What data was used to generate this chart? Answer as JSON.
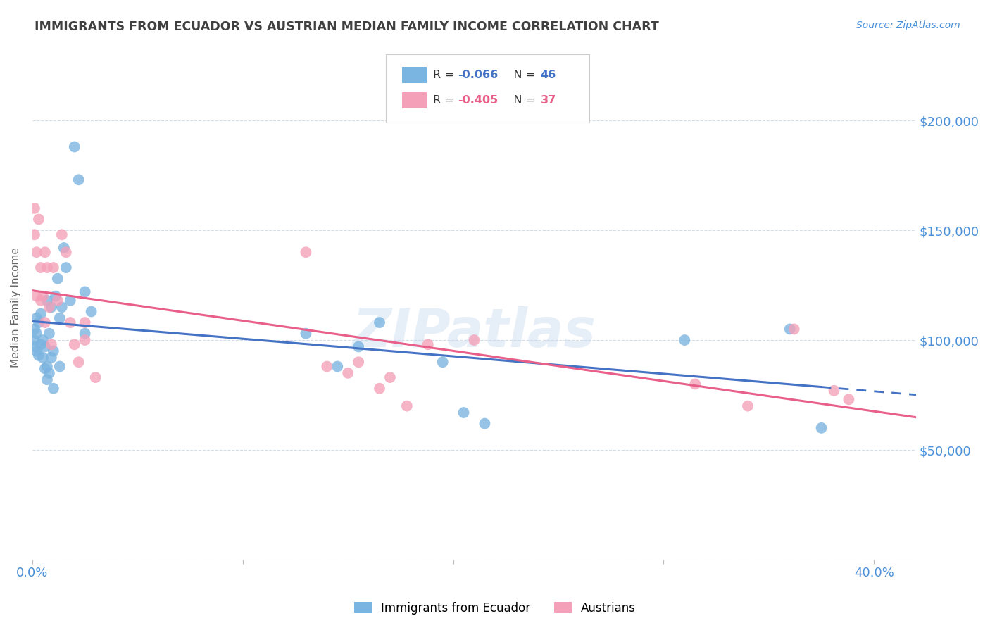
{
  "title": "IMMIGRANTS FROM ECUADOR VS AUSTRIAN MEDIAN FAMILY INCOME CORRELATION CHART",
  "source": "Source: ZipAtlas.com",
  "ylabel": "Median Family Income",
  "yticks": [
    0,
    50000,
    100000,
    150000,
    200000
  ],
  "ytick_labels": [
    "",
    "$50,000",
    "$100,000",
    "$150,000",
    "$200,000"
  ],
  "xlim": [
    0.0,
    0.42
  ],
  "ylim": [
    0,
    230000
  ],
  "legend_R1": "R = ",
  "legend_R1_val": "-0.066",
  "legend_N1": "   N = ",
  "legend_N1_val": "46",
  "legend_R2": "R = ",
  "legend_R2_val": "-0.405",
  "legend_N2": "   N = ",
  "legend_N2_val": "37",
  "series1_label": "Immigrants from Ecuador",
  "series2_label": "Austrians",
  "series1_color": "#7ab4e0",
  "series2_color": "#f4a0b8",
  "series1_line_color": "#4472c4",
  "series2_line_color": "#e8608a",
  "series1_x": [
    0.001,
    0.001,
    0.001,
    0.002,
    0.002,
    0.002,
    0.003,
    0.003,
    0.004,
    0.004,
    0.005,
    0.005,
    0.006,
    0.006,
    0.007,
    0.007,
    0.007,
    0.008,
    0.008,
    0.009,
    0.009,
    0.01,
    0.01,
    0.011,
    0.012,
    0.013,
    0.013,
    0.014,
    0.015,
    0.016,
    0.018,
    0.02,
    0.022,
    0.025,
    0.025,
    0.028,
    0.13,
    0.145,
    0.155,
    0.165,
    0.195,
    0.205,
    0.215,
    0.31,
    0.36,
    0.375
  ],
  "series1_y": [
    105000,
    100000,
    97000,
    110000,
    103000,
    95000,
    108000,
    93000,
    112000,
    98000,
    100000,
    92000,
    97000,
    87000,
    118000,
    88000,
    82000,
    103000,
    85000,
    115000,
    92000,
    95000,
    78000,
    120000,
    128000,
    110000,
    88000,
    115000,
    142000,
    133000,
    118000,
    188000,
    173000,
    103000,
    122000,
    113000,
    103000,
    88000,
    97000,
    108000,
    90000,
    67000,
    62000,
    100000,
    105000,
    60000
  ],
  "series2_x": [
    0.001,
    0.001,
    0.002,
    0.002,
    0.003,
    0.004,
    0.004,
    0.005,
    0.006,
    0.006,
    0.007,
    0.008,
    0.009,
    0.01,
    0.012,
    0.014,
    0.016,
    0.018,
    0.02,
    0.022,
    0.025,
    0.025,
    0.03,
    0.13,
    0.14,
    0.15,
    0.155,
    0.165,
    0.17,
    0.178,
    0.188,
    0.21,
    0.315,
    0.34,
    0.362,
    0.381,
    0.388
  ],
  "series2_y": [
    160000,
    148000,
    140000,
    120000,
    155000,
    133000,
    118000,
    120000,
    140000,
    108000,
    133000,
    115000,
    98000,
    133000,
    118000,
    148000,
    140000,
    108000,
    98000,
    90000,
    100000,
    108000,
    83000,
    140000,
    88000,
    85000,
    90000,
    78000,
    83000,
    70000,
    98000,
    100000,
    80000,
    70000,
    105000,
    77000,
    73000
  ],
  "watermark": "ZIPatlas",
  "background_color": "#ffffff",
  "grid_color": "#d4dce8",
  "tick_label_color": "#4a90d9",
  "title_color": "#404040",
  "trendline_intercept1": 107000,
  "trendline_slope1": -30000,
  "trendline_intercept2": 132000,
  "trendline_slope2": -180000
}
